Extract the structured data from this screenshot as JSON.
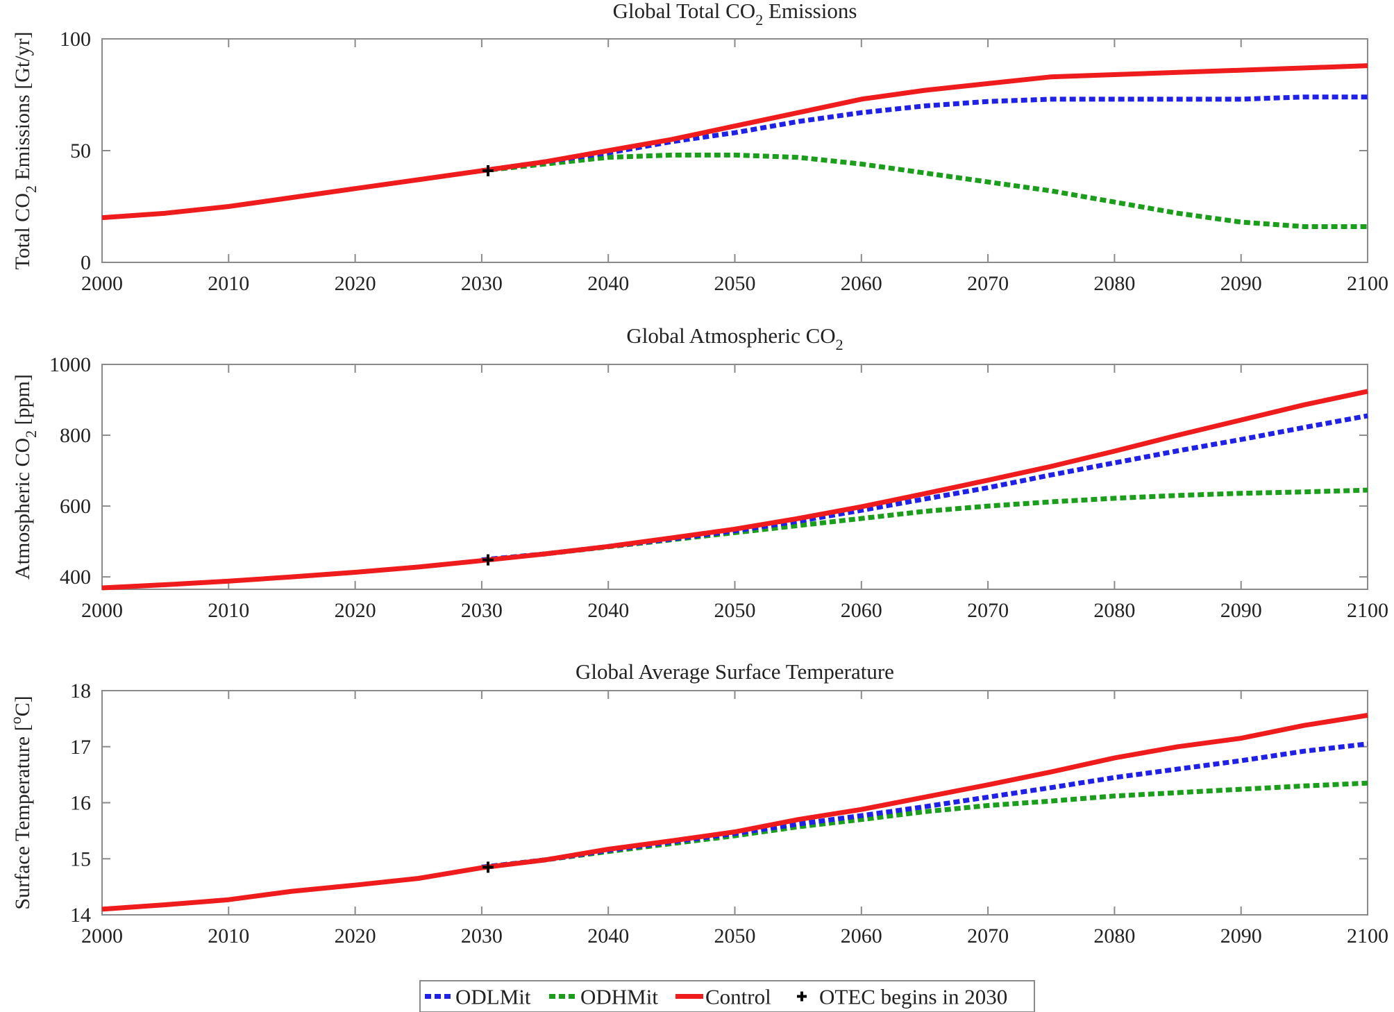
{
  "chart_data": [
    {
      "type": "line",
      "title": {
        "pre": "Global Total CO",
        "sub": "2",
        "post": " Emissions"
      },
      "ylabel": {
        "pre": "Total CO",
        "sub": "2",
        "post": " Emissions [Gt/yr]"
      },
      "xlabel": "",
      "xlim": [
        2000,
        2100
      ],
      "ylim": [
        0,
        100
      ],
      "xticks": [
        2000,
        2010,
        2020,
        2030,
        2040,
        2050,
        2060,
        2070,
        2080,
        2090,
        2100
      ],
      "yticks": [
        0,
        50,
        100
      ],
      "grid": false,
      "series": [
        {
          "name": "ODLMit",
          "x": [
            2030,
            2035,
            2040,
            2045,
            2050,
            2055,
            2060,
            2065,
            2070,
            2075,
            2080,
            2085,
            2090,
            2095,
            2100
          ],
          "values": [
            41,
            45,
            49,
            54,
            58,
            63,
            67,
            70,
            72,
            73,
            73,
            73,
            73,
            74,
            74
          ]
        },
        {
          "name": "ODHMit",
          "x": [
            2030,
            2035,
            2040,
            2045,
            2050,
            2055,
            2060,
            2065,
            2070,
            2075,
            2080,
            2085,
            2090,
            2095,
            2100
          ],
          "values": [
            41,
            44,
            47,
            48,
            48,
            47,
            44,
            40,
            36,
            32,
            27,
            22,
            18,
            16,
            16
          ]
        },
        {
          "name": "Control",
          "x": [
            2000,
            2005,
            2010,
            2015,
            2020,
            2025,
            2030,
            2035,
            2040,
            2045,
            2050,
            2055,
            2060,
            2065,
            2070,
            2075,
            2080,
            2085,
            2090,
            2095,
            2100
          ],
          "values": [
            20,
            22,
            25,
            29,
            33,
            37,
            41,
            45,
            50,
            55,
            61,
            67,
            73,
            77,
            80,
            83,
            84,
            85,
            86,
            87,
            88
          ]
        }
      ],
      "marker": {
        "name": "OTEC begins in 2030",
        "x": 2030.5,
        "y": 41
      }
    },
    {
      "type": "line",
      "title": {
        "pre": "Global Atmospheric CO",
        "sub": "2",
        "post": ""
      },
      "ylabel": {
        "pre": "Atmospheric CO",
        "sub": "2",
        "post": " [ppm]"
      },
      "xlabel": "",
      "xlim": [
        2000,
        2100
      ],
      "ylim": [
        365,
        1000
      ],
      "xticks": [
        2000,
        2010,
        2020,
        2030,
        2040,
        2050,
        2060,
        2070,
        2080,
        2090,
        2100
      ],
      "yticks": [
        400,
        600,
        800,
        1000
      ],
      "grid": false,
      "series": [
        {
          "name": "ODLMit",
          "x": [
            2030,
            2035,
            2040,
            2045,
            2050,
            2055,
            2060,
            2065,
            2070,
            2075,
            2080,
            2085,
            2090,
            2095,
            2100
          ],
          "values": [
            448,
            465,
            486,
            507,
            530,
            557,
            588,
            620,
            652,
            688,
            722,
            756,
            788,
            822,
            855
          ]
        },
        {
          "name": "ODHMit",
          "x": [
            2030,
            2035,
            2040,
            2045,
            2050,
            2055,
            2060,
            2065,
            2070,
            2075,
            2080,
            2085,
            2090,
            2095,
            2100
          ],
          "values": [
            448,
            465,
            485,
            505,
            525,
            545,
            565,
            585,
            600,
            612,
            622,
            630,
            636,
            640,
            645
          ]
        },
        {
          "name": "Control",
          "x": [
            2000,
            2005,
            2010,
            2015,
            2020,
            2025,
            2030,
            2035,
            2040,
            2045,
            2050,
            2055,
            2060,
            2065,
            2070,
            2075,
            2080,
            2085,
            2090,
            2095,
            2100
          ],
          "values": [
            369,
            378,
            388,
            400,
            413,
            428,
            446,
            465,
            486,
            510,
            535,
            565,
            598,
            635,
            673,
            712,
            755,
            800,
            843,
            886,
            924
          ]
        }
      ],
      "marker": {
        "name": "OTEC begins in 2030",
        "x": 2030.5,
        "y": 448
      }
    },
    {
      "type": "line",
      "title": {
        "pre": "Global Average Surface Temperature",
        "sub": "",
        "post": ""
      },
      "ylabel": {
        "pre": "Surface Temperature [",
        "sup": "o",
        "post": "C]"
      },
      "xlabel": "",
      "xlim": [
        2000,
        2100
      ],
      "ylim": [
        14,
        18
      ],
      "xticks": [
        2000,
        2010,
        2020,
        2030,
        2040,
        2050,
        2060,
        2070,
        2080,
        2090,
        2100
      ],
      "yticks": [
        14,
        15,
        16,
        17,
        18
      ],
      "grid": false,
      "series": [
        {
          "name": "ODLMit",
          "x": [
            2030,
            2035,
            2040,
            2045,
            2050,
            2055,
            2060,
            2065,
            2070,
            2075,
            2080,
            2085,
            2090,
            2095,
            2100
          ],
          "values": [
            14.85,
            14.98,
            15.15,
            15.3,
            15.45,
            15.62,
            15.77,
            15.93,
            16.1,
            16.27,
            16.45,
            16.6,
            16.75,
            16.92,
            17.05
          ]
        },
        {
          "name": "ODHMit",
          "x": [
            2030,
            2035,
            2040,
            2045,
            2050,
            2055,
            2060,
            2065,
            2070,
            2075,
            2080,
            2085,
            2090,
            2095,
            2100
          ],
          "values": [
            14.85,
            14.98,
            15.13,
            15.27,
            15.41,
            15.57,
            15.7,
            15.84,
            15.95,
            16.03,
            16.12,
            16.18,
            16.24,
            16.3,
            16.35
          ]
        },
        {
          "name": "Control",
          "x": [
            2000,
            2005,
            2010,
            2015,
            2020,
            2025,
            2030,
            2035,
            2040,
            2045,
            2050,
            2055,
            2060,
            2065,
            2070,
            2075,
            2080,
            2085,
            2090,
            2095,
            2100
          ],
          "values": [
            14.1,
            14.18,
            14.27,
            14.42,
            14.53,
            14.65,
            14.84,
            14.98,
            15.17,
            15.32,
            15.48,
            15.7,
            15.88,
            16.1,
            16.32,
            16.55,
            16.8,
            17.0,
            17.15,
            17.38,
            17.56
          ]
        }
      ],
      "marker": {
        "name": "OTEC begins in 2030",
        "x": 2030.5,
        "y": 14.85
      }
    }
  ],
  "legend": {
    "placement": "bottom-center",
    "items": [
      {
        "label": "ODLMit",
        "style": "dotted",
        "color": "#1f22e6"
      },
      {
        "label": "ODHMit",
        "style": "dotted",
        "color": "#1b9e1b"
      },
      {
        "label": "Control",
        "style": "solid",
        "color": "#ee1c1c"
      },
      {
        "label": "OTEC begins in 2030",
        "style": "marker",
        "color": "#000000"
      }
    ]
  },
  "colors": {
    "ODLMit": "#1f22e6",
    "ODHMit": "#1b9e1b",
    "Control": "#ee1c1c",
    "marker": "#000000"
  }
}
